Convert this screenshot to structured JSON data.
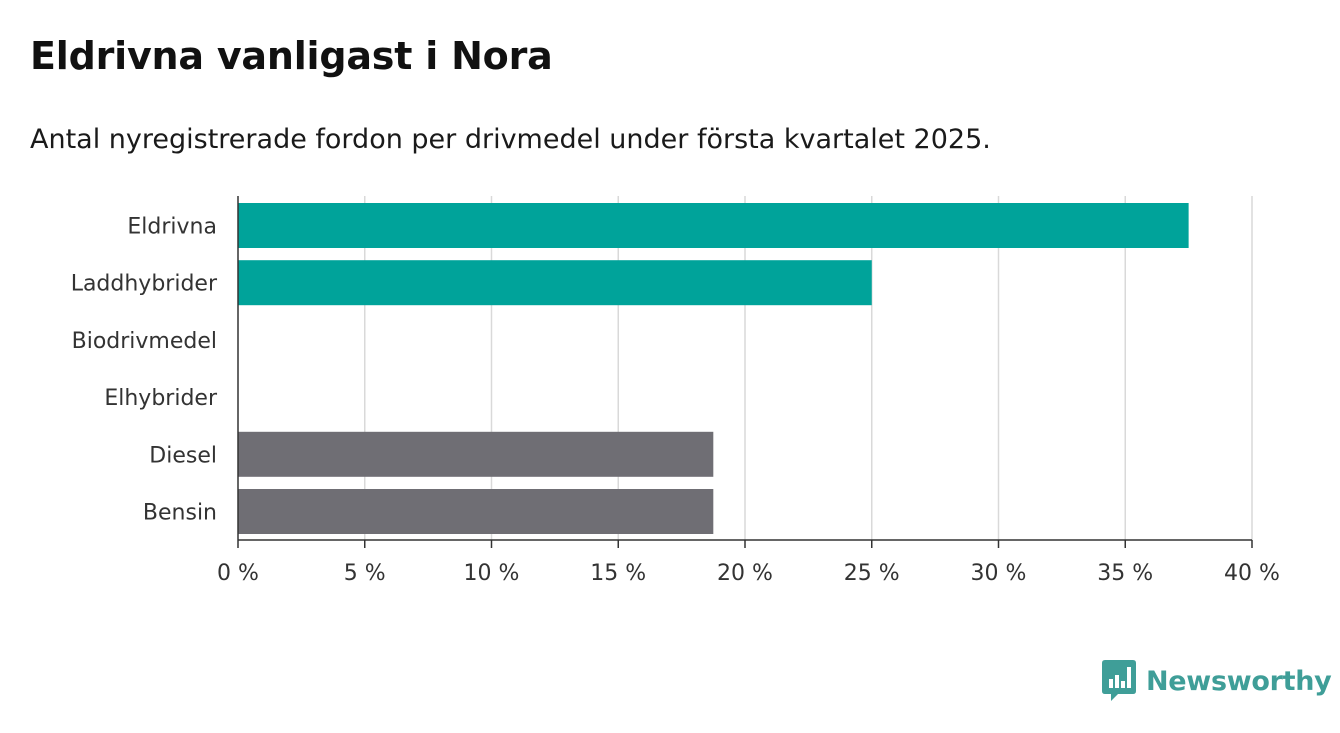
{
  "header": {
    "title": "Eldrivna vanligast i Nora",
    "subtitle": "Antal nyregistrerade fordon per drivmedel under första kvartalet 2025."
  },
  "chart_data": {
    "type": "bar",
    "orientation": "horizontal",
    "title": "Eldrivna vanligast i Nora",
    "subtitle": "Antal nyregistrerade fordon per drivmedel under första kvartalet 2025.",
    "categories": [
      "Eldrivna",
      "Laddhybrider",
      "Biodrivmedel",
      "Elhybrider",
      "Diesel",
      "Bensin"
    ],
    "values": [
      37.5,
      25.0,
      0,
      0,
      18.75,
      18.75
    ],
    "unit": "%",
    "xlim": [
      0,
      40
    ],
    "xticks": [
      0,
      5,
      10,
      15,
      20,
      25,
      30,
      35,
      40
    ],
    "xtick_labels": [
      "0 %",
      "5 %",
      "10 %",
      "15 %",
      "20 %",
      "25 %",
      "30 %",
      "35 %",
      "40 %"
    ],
    "grid": "vertical",
    "bar_colors": [
      "#00a39a",
      "#00a39a",
      "#00a39a",
      "#00a39a",
      "#6f6e74",
      "#6f6e74"
    ]
  },
  "brand": {
    "name": "Newsworthy",
    "icon": "bar-chart-speech-bubble-icon",
    "color": "#3f9e98"
  }
}
